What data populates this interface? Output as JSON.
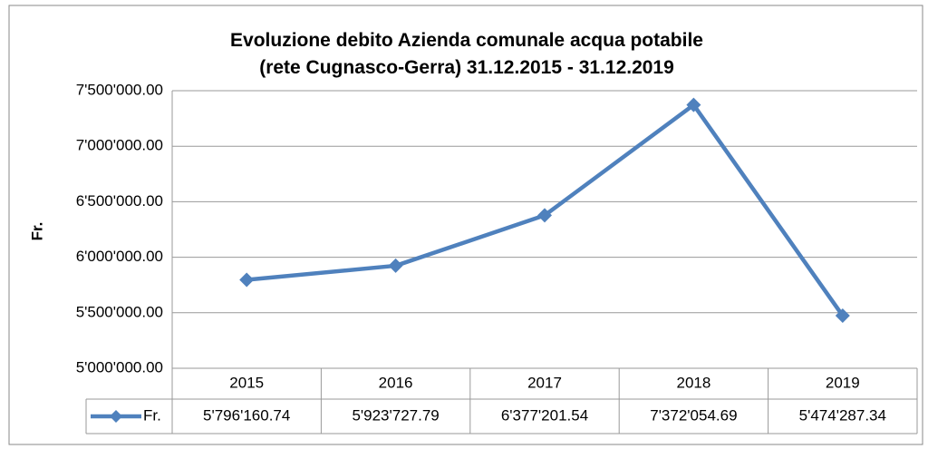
{
  "chart_data": {
    "type": "line",
    "title": "Evoluzione debito Azienda comunale acqua potabile\n(rete Cugnasco-Gerra) 31.12.2015 - 31.12.2019",
    "y_label": "Fr.",
    "categories": [
      "2015",
      "2016",
      "2017",
      "2018",
      "2019"
    ],
    "series": [
      {
        "name": "Fr.",
        "color": "#4f81bd",
        "values": [
          5796160.74,
          5923727.79,
          6377201.54,
          7372054.69,
          5474287.34
        ],
        "value_labels": [
          "5'796'160.74",
          "5'923'727.79",
          "6'377'201.54",
          "7'372'054.69",
          "5'474'287.34"
        ]
      }
    ],
    "ylim": [
      5000000,
      7500000
    ],
    "yticks": [
      {
        "value": 5000000,
        "label": "5'000'000.00"
      },
      {
        "value": 5500000,
        "label": "5'500'000.00"
      },
      {
        "value": 6000000,
        "label": "6'000'000.00"
      },
      {
        "value": 6500000,
        "label": "6'500'000.00"
      },
      {
        "value": 7000000,
        "label": "7'000'000.00"
      },
      {
        "value": 7500000,
        "label": "7'500'000.00"
      }
    ],
    "grid": true
  }
}
